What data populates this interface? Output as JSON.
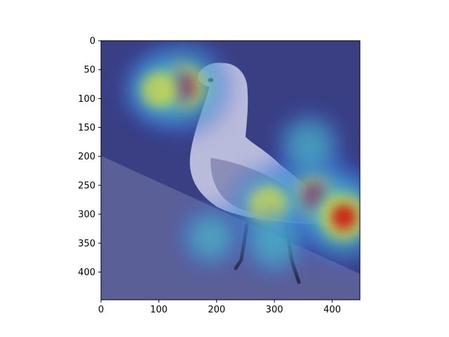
{
  "chart_data": {
    "type": "heatmap",
    "title": "",
    "xlabel": "",
    "ylabel": "",
    "xlim": [
      0,
      448
    ],
    "ylim": [
      448,
      0
    ],
    "x_ticks": [
      0,
      100,
      200,
      300,
      400
    ],
    "y_ticks": [
      0,
      50,
      100,
      150,
      200,
      250,
      300,
      350,
      400
    ],
    "x_tick_labels": [
      "0",
      "100",
      "200",
      "300",
      "400"
    ],
    "y_tick_labels": [
      "0",
      "50",
      "100",
      "150",
      "200",
      "250",
      "300",
      "350",
      "400"
    ],
    "colormap": "jet",
    "hotspots": [
      {
        "x": 140,
        "y": 80,
        "intensity": 1.0,
        "region": "beak"
      },
      {
        "x": 100,
        "y": 85,
        "intensity": 0.55,
        "region": "head-left"
      },
      {
        "x": 370,
        "y": 270,
        "intensity": 0.95,
        "region": "wing"
      },
      {
        "x": 420,
        "y": 305,
        "intensity": 1.0,
        "region": "tail"
      },
      {
        "x": 290,
        "y": 285,
        "intensity": 0.65,
        "region": "body"
      },
      {
        "x": 360,
        "y": 180,
        "intensity": 0.4,
        "region": "back"
      },
      {
        "x": 190,
        "y": 340,
        "intensity": 0.35,
        "region": "legs-left"
      },
      {
        "x": 300,
        "y": 350,
        "intensity": 0.4,
        "region": "legs"
      }
    ],
    "grid": false
  },
  "colors": {
    "sky": "#3a3f83",
    "ground": "#5b5f98",
    "bird": "#b9bbdb",
    "hot": "#d10000",
    "warm": "#f5e52a",
    "cool": "#4fd1c5"
  }
}
